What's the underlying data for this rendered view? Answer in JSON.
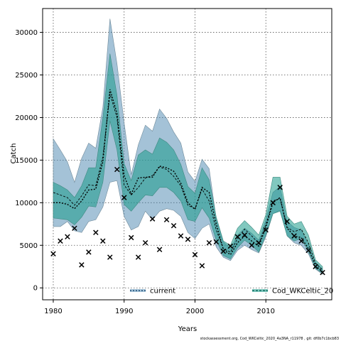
{
  "chart_data": {
    "type": "line",
    "title": "",
    "xlabel": "Years",
    "ylabel": "Catch",
    "xlim": [
      1978.5,
      2019.3
    ],
    "ylim": [
      -1400,
      32800
    ],
    "xticks": [
      1980,
      1990,
      2000,
      2010
    ],
    "yticks": [
      0,
      5000,
      10000,
      15000,
      20000,
      25000,
      30000
    ],
    "grid": true,
    "legend_position": "bottom",
    "footer": "stockassessment.org, Cod_WKCeltic_2020_4a3NA_r11978 , git: df0b7c1bcb83",
    "colors": {
      "current_band": "#4a86b0",
      "current_line": "#000000",
      "current_legend": "#1f4e79",
      "alt_band": "#1a9a8a",
      "alt_line": "#000000",
      "alt_legend": "#0f7060",
      "observed": "#000000"
    },
    "series": [
      {
        "name": "current",
        "x": [
          1980,
          1981,
          1982,
          1983,
          1984,
          1985,
          1986,
          1987,
          1988,
          1989,
          1990,
          1991,
          1992,
          1993,
          1994,
          1995,
          1996,
          1997,
          1998,
          1999,
          2000,
          2001,
          2002,
          2003,
          2004,
          2005,
          2006,
          2007,
          2008,
          2009,
          2010,
          2011,
          2012,
          2013,
          2014,
          2015,
          2016,
          2017,
          2018
        ],
        "estimate": [
          10000,
          10000,
          9800,
          9300,
          10200,
          11500,
          11600,
          14800,
          23300,
          20500,
          13200,
          11000,
          12900,
          13000,
          13000,
          14300,
          14100,
          13700,
          12300,
          10000,
          9200,
          11800,
          11200,
          7500,
          4500,
          3900,
          5300,
          6100,
          5500,
          4900,
          7100,
          10000,
          10600,
          7000,
          6100,
          5900,
          4600,
          2600,
          1900
        ],
        "low": [
          7200,
          7200,
          7800,
          6700,
          6500,
          7800,
          8000,
          9500,
          12400,
          12600,
          8400,
          6800,
          7200,
          9000,
          8000,
          9000,
          9300,
          9100,
          8400,
          6500,
          5800,
          7000,
          7500,
          4800,
          3600,
          3200,
          4400,
          5000,
          4500,
          4100,
          6000,
          8700,
          9100,
          6100,
          5300,
          5000,
          4000,
          2200,
          1600
        ],
        "high": [
          17500,
          16200,
          14800,
          12400,
          15200,
          17000,
          16400,
          21200,
          31600,
          26300,
          19400,
          13300,
          16800,
          19100,
          18400,
          21000,
          19900,
          18300,
          17000,
          13600,
          12500,
          15100,
          14000,
          8100,
          5400,
          4600,
          6200,
          7000,
          6400,
          5600,
          8000,
          11200,
          11900,
          7800,
          7100,
          6800,
          5100,
          3000,
          2200
        ]
      },
      {
        "name": "Cod_WKCeltic_20",
        "x": [
          1980,
          1981,
          1982,
          1983,
          1984,
          1985,
          1986,
          1987,
          1988,
          1989,
          1990,
          1991,
          1992,
          1993,
          1994,
          1995,
          1996,
          1997,
          1998,
          1999,
          2000,
          2001,
          2002,
          2003,
          2004,
          2005,
          2006,
          2007,
          2008,
          2009,
          2010,
          2011,
          2012,
          2013,
          2014,
          2015,
          2016,
          2017,
          2018
        ],
        "estimate": [
          11200,
          10900,
          10600,
          9700,
          10800,
          12100,
          12000,
          15400,
          22800,
          20000,
          12100,
          10900,
          11800,
          12900,
          13200,
          14200,
          13900,
          13100,
          12000,
          9700,
          9300,
          11600,
          10200,
          6800,
          4600,
          4200,
          5800,
          6900,
          6100,
          5200,
          7400,
          10200,
          10500,
          7100,
          6600,
          6900,
          5300,
          2900,
          2100
        ],
        "low": [
          8200,
          8100,
          8000,
          7400,
          8300,
          9600,
          9500,
          12400,
          19600,
          16200,
          9800,
          9000,
          10000,
          10900,
          10800,
          11800,
          11800,
          11200,
          10200,
          8000,
          7800,
          9400,
          8200,
          5600,
          3800,
          3400,
          4700,
          5600,
          5000,
          4200,
          6200,
          8700,
          9000,
          6100,
          5500,
          5800,
          4300,
          2300,
          1700
        ],
        "high": [
          12400,
          12000,
          11500,
          10600,
          12000,
          14100,
          14100,
          20000,
          27500,
          22600,
          14600,
          12600,
          15600,
          16200,
          15700,
          17600,
          17100,
          16200,
          14500,
          11900,
          11100,
          14100,
          12700,
          8300,
          5500,
          5000,
          7000,
          7900,
          7100,
          6200,
          8600,
          13000,
          13000,
          8400,
          7500,
          7800,
          6200,
          3300,
          2500
        ]
      },
      {
        "name": "observed",
        "x": [
          1980,
          1981,
          1982,
          1983,
          1984,
          1985,
          1986,
          1987,
          1988,
          1989,
          1990,
          1991,
          1992,
          1993,
          1994,
          1995,
          1996,
          1997,
          1998,
          1999,
          2000,
          2001,
          2002,
          2003,
          2004,
          2005,
          2006,
          2007,
          2008,
          2009,
          2010,
          2011,
          2012,
          2013,
          2014,
          2015,
          2016,
          2017,
          2018
        ],
        "values": [
          4000,
          5500,
          6000,
          7000,
          2700,
          4200,
          6500,
          5500,
          3600,
          13900,
          10600,
          5900,
          3600,
          5300,
          8100,
          4500,
          8000,
          7300,
          6100,
          5700,
          3900,
          2600,
          5300,
          5400,
          4300,
          4900,
          6000,
          6200,
          5000,
          5300,
          6800,
          10000,
          11800,
          7800,
          6100,
          5500,
          4400,
          2500,
          1800
        ]
      }
    ]
  }
}
